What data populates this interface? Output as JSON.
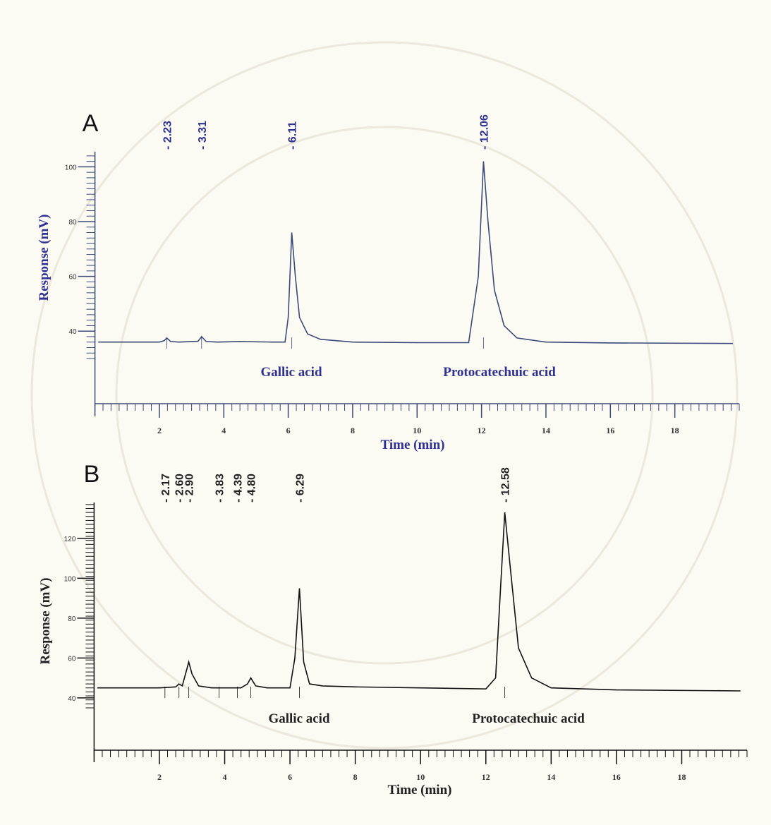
{
  "chart_data": [
    {
      "type": "line",
      "panel_label": "A",
      "color": "#3c4a78",
      "text_color": "#2e3192",
      "y_label": "Response (mV)",
      "x_label": "Time (min)",
      "annotations": [
        "Gallic acid",
        "Protocatechuic acid"
      ],
      "peak_times": [
        2.23,
        3.31,
        6.11,
        12.06
      ],
      "peak_time_labels": [
        "- 2.23",
        "- 3.31",
        "- 6.11",
        "- 12.06"
      ],
      "x": [
        0.1,
        2.0,
        2.15,
        2.23,
        2.35,
        2.6,
        3.2,
        3.31,
        3.45,
        3.8,
        4.5,
        5.5,
        5.9,
        6.0,
        6.11,
        6.22,
        6.35,
        6.6,
        7.0,
        8,
        10,
        11.6,
        11.9,
        12.06,
        12.2,
        12.4,
        12.7,
        13.1,
        14,
        16,
        19.8
      ],
      "values": [
        36,
        36,
        36.5,
        37.5,
        36.2,
        36,
        36.3,
        38,
        36.2,
        36,
        36.2,
        36,
        36,
        45,
        76,
        60,
        45,
        39,
        37,
        36,
        35.8,
        35.8,
        60,
        102,
        80,
        55,
        42,
        37.5,
        36,
        35.7,
        35.5
      ],
      "xlim": [
        0,
        20
      ],
      "xticks": [
        2,
        4,
        6,
        8,
        10,
        12,
        14,
        16,
        18
      ],
      "x_minor_step": 0.25,
      "ylim": [
        30,
        105
      ],
      "yticks": [
        40,
        60,
        80,
        100
      ],
      "y_minor_step": 2
    },
    {
      "type": "line",
      "panel_label": "B",
      "color": "#111111",
      "text_color": "#222222",
      "y_label": "Response (mV)",
      "x_label": "Time (min)",
      "annotations": [
        "Gallic acid",
        "Protocatechuic acid"
      ],
      "peak_times": [
        2.17,
        2.6,
        2.9,
        3.83,
        4.39,
        4.8,
        6.29,
        12.58
      ],
      "peak_time_labels": [
        "- 2.17",
        "- 2.60",
        "- 2.90",
        "- 3.83",
        "- 4.39",
        "- 4.80",
        "- 6.29",
        "- 12.58"
      ],
      "x": [
        0.1,
        2.0,
        2.5,
        2.6,
        2.7,
        2.8,
        2.9,
        3.0,
        3.2,
        3.6,
        4.5,
        4.7,
        4.8,
        4.95,
        5.3,
        6.0,
        6.15,
        6.29,
        6.42,
        6.6,
        7,
        8,
        10,
        12,
        12.3,
        12.45,
        12.58,
        12.75,
        13,
        13.4,
        14,
        16,
        19.8
      ],
      "values": [
        45,
        45,
        45.5,
        47,
        46,
        52,
        58,
        52,
        46,
        45,
        45,
        47,
        50,
        46,
        45,
        45,
        60,
        95,
        58,
        47,
        46,
        45.5,
        45,
        44.5,
        50,
        95,
        133,
        105,
        65,
        50,
        45,
        44,
        43.5
      ],
      "xlim": [
        0,
        20
      ],
      "xticks": [
        2,
        4,
        6,
        8,
        10,
        12,
        14,
        16,
        18
      ],
      "x_minor_step": 0.25,
      "ylim": [
        35,
        138
      ],
      "yticks": [
        40,
        60,
        80,
        100,
        120
      ],
      "y_minor_step": 2
    }
  ]
}
